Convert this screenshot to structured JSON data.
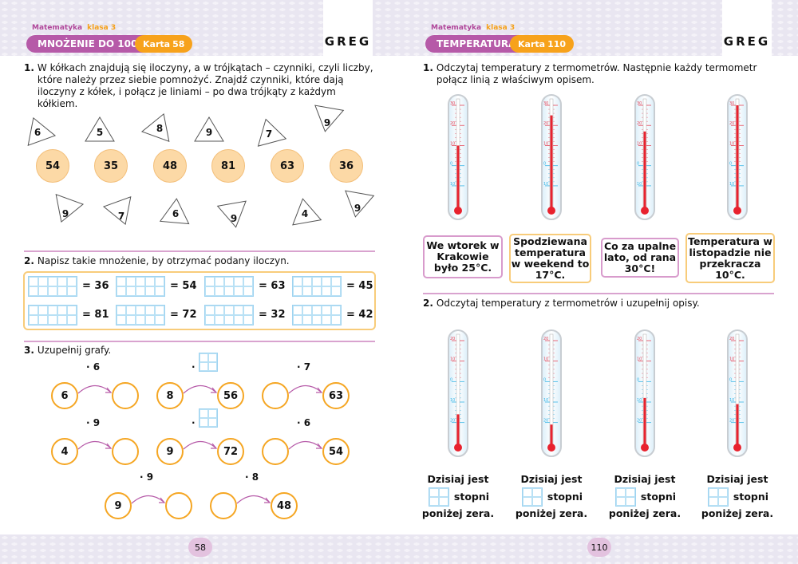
{
  "left": {
    "subject": "Matematyka",
    "grade": "klasa 3",
    "topic": "MNOŻENIE DO 100",
    "card_label": "Karta",
    "card_number": "58",
    "logo": "GREG",
    "page_number": "58",
    "ex1": {
      "num": "1.",
      "text": "W kółkach znajdują się iloczyny, a w trójkątach – czynniki, czyli liczby, które należy przez siebie pomnożyć. Znajdź czynniki, które dają iloczyny z kółek, i połącz je liniami – po dwa trójkąty z każdym kółkiem.",
      "triangles_top": [
        "6",
        "5",
        "8",
        "9",
        "7",
        "9"
      ],
      "products": [
        "54",
        "35",
        "48",
        "81",
        "63",
        "36"
      ],
      "triangles_bottom": [
        "9",
        "7",
        "6",
        "9",
        "4",
        "9"
      ]
    },
    "ex2": {
      "num": "2.",
      "text": "Napisz takie mnożenie, by otrzymać podany iloczyn.",
      "rows": [
        [
          "= 36",
          "= 54",
          "= 63",
          "= 45"
        ],
        [
          "= 81",
          "= 72",
          "= 32",
          "= 42"
        ]
      ]
    },
    "ex3": {
      "num": "3.",
      "text": "Uzupełnij grafy.",
      "graphs": [
        {
          "op": "· 6",
          "from": "6",
          "to": ""
        },
        {
          "op": "·",
          "from": "8",
          "to": "56"
        },
        {
          "op": "· 7",
          "from": "",
          "to": "63"
        },
        {
          "op": "· 9",
          "from": "4",
          "to": ""
        },
        {
          "op": "·",
          "from": "9",
          "to": "72"
        },
        {
          "op": "· 6",
          "from": "",
          "to": "54"
        },
        {
          "op": "· 9",
          "from": "9",
          "to": ""
        },
        {
          "op": "· 8",
          "from": "",
          "to": "48"
        }
      ]
    }
  },
  "right": {
    "subject": "Matematyka",
    "grade": "klasa 3",
    "topic": "TEMPERATURA",
    "card_label": "Karta",
    "card_number": "110",
    "logo": "GREG",
    "page_number": "110",
    "ex1": {
      "num": "1.",
      "text": "Odczytaj temperatury z termometrów. Następnie każdy termometr połącz linią z właściwym opisem.",
      "scale": [
        30,
        20,
        10,
        0,
        -10
      ],
      "temperatures_c": [
        10,
        25,
        17,
        30
      ],
      "descriptions": [
        "We wtorek w Krakowie było 25°C.",
        "Spodziewana temperatura w weekend to 17°C.",
        "Co za upalne lato, od rana 30°C!",
        "Temperatura w listopadzie nie przekracza 10°C."
      ]
    },
    "ex2": {
      "num": "2.",
      "text": "Odczytaj temperatury z termometrów i uzupełnij opisy.",
      "scale": [
        20,
        10,
        0,
        -10,
        -20
      ],
      "temperatures_c": [
        -16,
        -21,
        -8,
        -11
      ],
      "line1": "Dzisiaj jest",
      "line2": "stopni",
      "line3": "poniżej zera."
    }
  },
  "colors": {
    "purple": "#b65aa8",
    "orange": "#f7a21b",
    "circle_fill": "#fcd9a6",
    "grid_blue": "#9fd3f0",
    "mercury": "#e8222e"
  }
}
